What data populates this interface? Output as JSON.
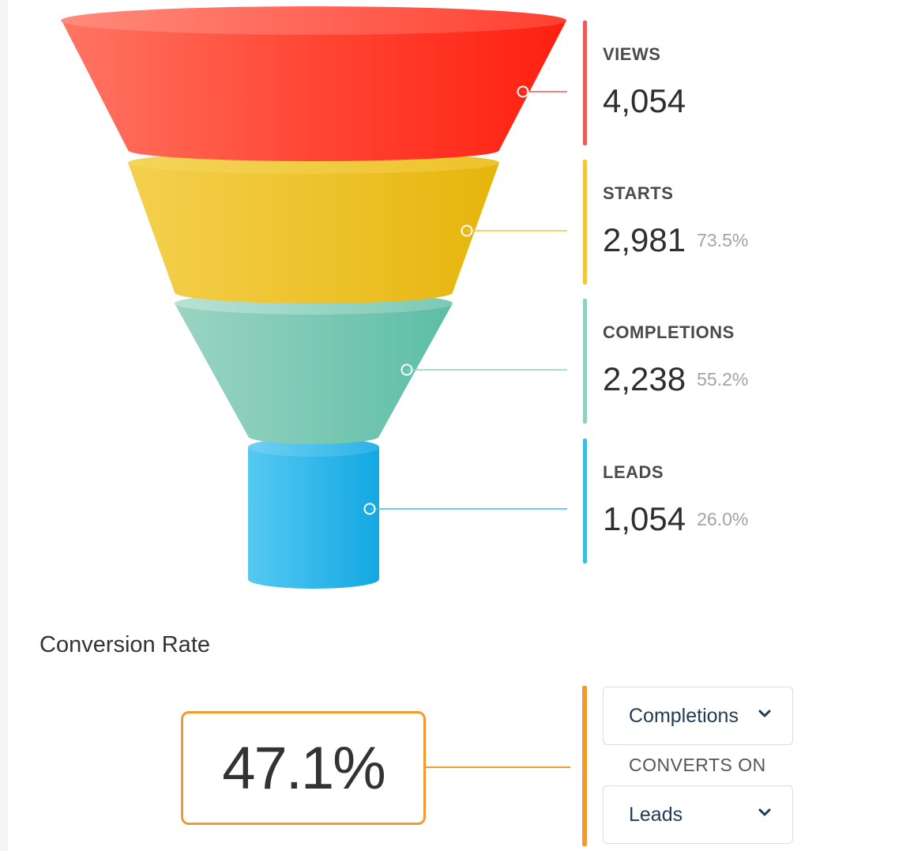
{
  "funnel": {
    "stages": [
      {
        "key": "views",
        "label": "VIEWS",
        "value": "4,054",
        "percent": "",
        "color": "#ee5a57"
      },
      {
        "key": "starts",
        "label": "STARTS",
        "value": "2,981",
        "percent": "73.5%",
        "color": "#f2c53d"
      },
      {
        "key": "completions",
        "label": "COMPLETIONS",
        "value": "2,238",
        "percent": "55.2%",
        "color": "#8fd1bd"
      },
      {
        "key": "leads",
        "label": "LEADS",
        "value": "1,054",
        "percent": "26.0%",
        "color": "#3cbde8"
      }
    ]
  },
  "conversion": {
    "title": "Conversion Rate",
    "rate": "47.1%",
    "accent_color": "#f29a2e",
    "from_select": "Completions",
    "converts_on_label": "CONVERTS ON",
    "to_select": "Leads"
  },
  "icons": {
    "dropdown": "chevron-down-icon"
  }
}
